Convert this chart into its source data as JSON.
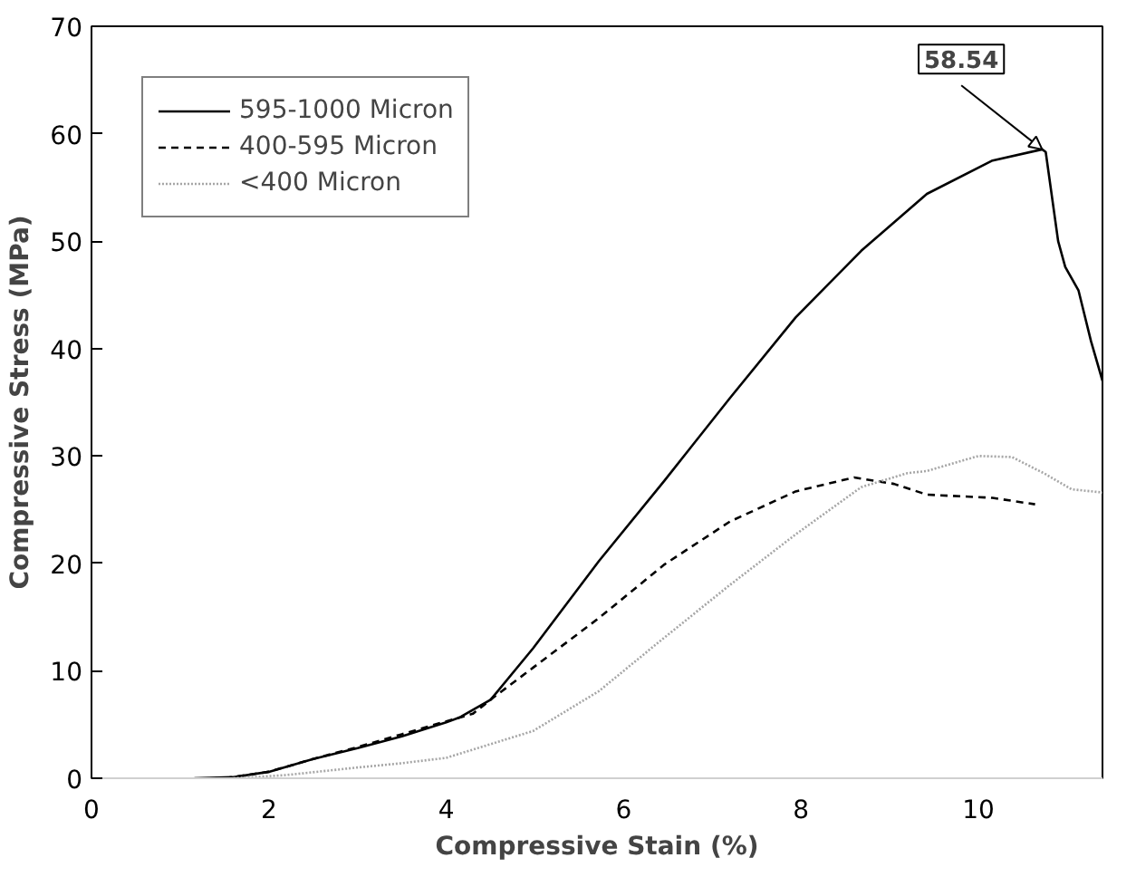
{
  "chart_data": {
    "type": "line",
    "xlabel": "Compressive Stain (%)",
    "ylabel": "Compressive Stress (MPa)",
    "xlim": [
      0,
      11.4
    ],
    "xticks": [
      0,
      2,
      4,
      6,
      8,
      10
    ],
    "ylim": [
      0,
      70
    ],
    "yticks": [
      0,
      10,
      20,
      30,
      40,
      50,
      60,
      70
    ],
    "grid": false,
    "legend": "top left",
    "marker": "none",
    "series": [
      {
        "name": "595-1000 Micron",
        "color": "#000000",
        "line_style": "solid",
        "x": [
          1.16,
          1.6,
          2.0,
          2.5,
          3.0,
          3.5,
          4.0,
          4.16,
          4.5,
          4.98,
          5.72,
          6.46,
          7.2,
          7.94,
          8.68,
          9.42,
          10.16,
          10.72,
          10.76,
          10.9,
          10.98,
          11.13,
          11.27,
          11.4
        ],
        "values": [
          0,
          0.1,
          0.6,
          1.8,
          2.8,
          3.9,
          5.2,
          5.7,
          7.3,
          12.1,
          20.2,
          27.7,
          35.4,
          42.9,
          49.1,
          54.4,
          57.5,
          58.54,
          58.3,
          50,
          47.6,
          45.4,
          40.7,
          37
        ]
      },
      {
        "name": "400-595 Micron",
        "color": "#000000",
        "line_style": "dashed",
        "x": [
          1.5,
          2.0,
          2.5,
          3.0,
          3.5,
          4.0,
          4.3,
          4.53,
          4.98,
          5.72,
          6.46,
          7.2,
          7.94,
          8.6,
          9.05,
          9.42,
          10.16,
          10.64
        ],
        "values": [
          0,
          0.6,
          1.8,
          2.9,
          4.1,
          5.3,
          6.0,
          7.5,
          10.3,
          14.9,
          19.9,
          23.9,
          26.7,
          28.0,
          27.4,
          26.4,
          26.1,
          25.5
        ]
      },
      {
        "name": "<400 Micron",
        "color": "#a6a6a6",
        "line_style": "dotted",
        "x": [
          1.6,
          2.2,
          3.0,
          3.5,
          4.0,
          4.98,
          5.72,
          6.46,
          7.2,
          7.94,
          8.68,
          9.2,
          9.42,
          10.0,
          10.38,
          10.76,
          11.05,
          11.4
        ],
        "values": [
          0,
          0.3,
          1.0,
          1.4,
          1.9,
          4.4,
          8.1,
          13.1,
          18.0,
          22.7,
          27.1,
          28.4,
          28.6,
          30.0,
          29.9,
          28.3,
          26.9,
          26.6
        ]
      }
    ],
    "annotations": [
      {
        "text": "58.54",
        "x": 10.72,
        "y": 58.54
      }
    ]
  }
}
